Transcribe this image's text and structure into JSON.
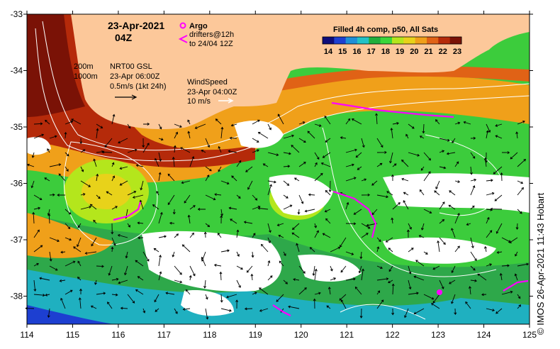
{
  "header": {
    "date": "23-Apr-2021",
    "hour": "04Z"
  },
  "legend": {
    "argo_label": "Argo",
    "drifters_label": "drifters@12h",
    "drifters_until": "to 24/04 12Z",
    "colorbar_title": "Filled 4h comp, p50, All Sats",
    "colorbar_ticks": [
      "14",
      "15",
      "16",
      "17",
      "18",
      "19",
      "20",
      "21",
      "22",
      "23"
    ],
    "colorbar_colors": [
      "#0d0d7a",
      "#1d3fd1",
      "#1e8fd8",
      "#22c2c7",
      "#1fae3c",
      "#3ad63a",
      "#b4e61c",
      "#e8d21a",
      "#f0a01a",
      "#e06216",
      "#b52a0a",
      "#7a1206"
    ]
  },
  "notes": {
    "isobath_1": "200m",
    "isobath_2": "1000m",
    "current_source": "NRT00 GSL",
    "current_time": "23-Apr 06:00Z",
    "current_scale": "0.5m/s (1kt 24h)",
    "wind_title": "WindSpeed",
    "wind_time": "23-Apr 04:00Z",
    "wind_scale": "10 m/s"
  },
  "axes": {
    "x_ticks": [
      "114",
      "115",
      "116",
      "117",
      "118",
      "119",
      "120",
      "121",
      "122",
      "123",
      "124",
      "125"
    ],
    "y_ticks": [
      "-33",
      "-34",
      "-35",
      "-36",
      "-37",
      "-38"
    ]
  },
  "credit": "© IMOS 26-Apr-2021 11:43 Hobart",
  "colors": {
    "land": "#fcc89a",
    "drifter": "#ff00ff",
    "contour": "#ffffff"
  }
}
